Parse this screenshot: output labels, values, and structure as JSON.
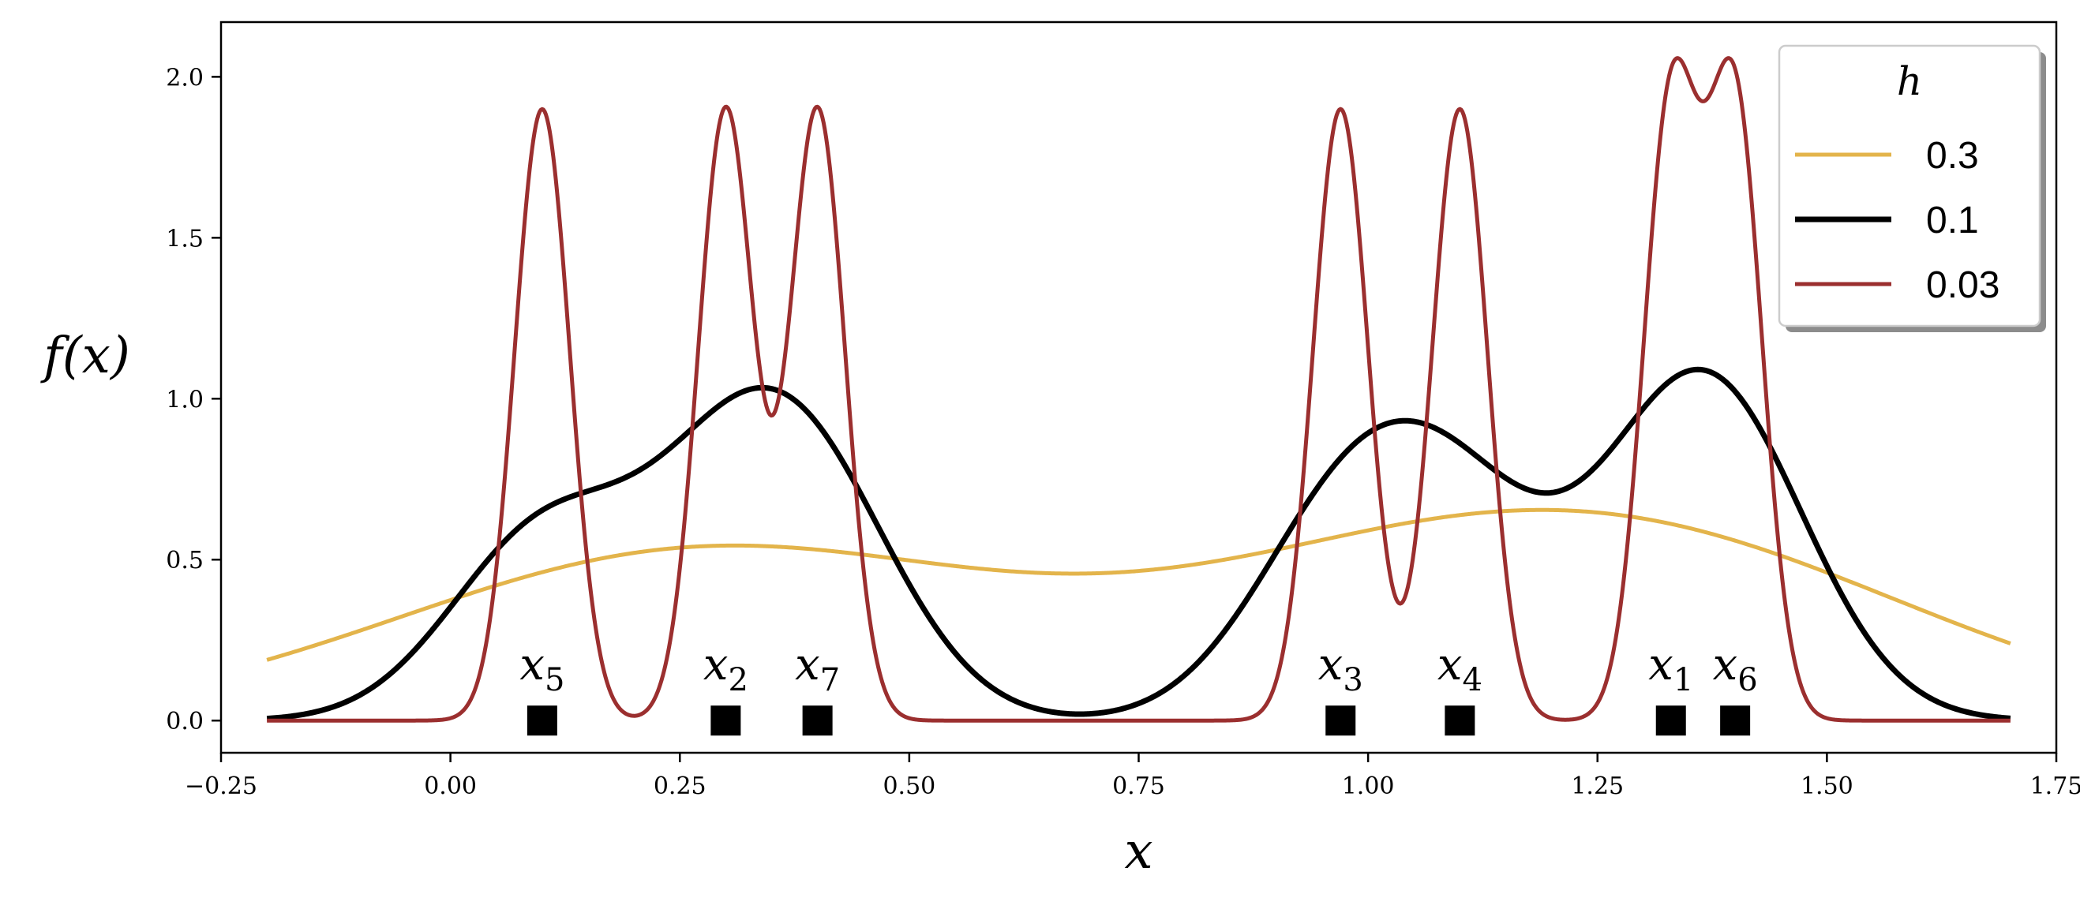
{
  "chart_data": {
    "type": "line",
    "title": "",
    "xlabel": "x",
    "ylabel": "f(x)",
    "xlim": [
      -0.25,
      1.75
    ],
    "ylim": [
      -0.1,
      2.17
    ],
    "xticks": [
      -0.25,
      0.0,
      0.25,
      0.5,
      0.75,
      1.0,
      1.25,
      1.5,
      1.75
    ],
    "xtick_labels": [
      "−0.25",
      "0.00",
      "0.25",
      "0.50",
      "0.75",
      "1.00",
      "1.25",
      "1.50",
      "1.75"
    ],
    "yticks": [
      0.0,
      0.5,
      1.0,
      1.5,
      2.0
    ],
    "ytick_labels": [
      "0.0",
      "0.5",
      "1.0",
      "1.5",
      "2.0"
    ],
    "grid": false,
    "legend": {
      "title": "h",
      "placement": "top-right",
      "shadow": true
    },
    "data_points": [
      {
        "name": "x",
        "sub": "1",
        "x": 1.33
      },
      {
        "name": "x",
        "sub": "2",
        "x": 0.3
      },
      {
        "name": "x",
        "sub": "3",
        "x": 0.97
      },
      {
        "name": "x",
        "sub": "4",
        "x": 1.1
      },
      {
        "name": "x",
        "sub": "5",
        "x": 0.1
      },
      {
        "name": "x",
        "sub": "6",
        "x": 1.4
      },
      {
        "name": "x",
        "sub": "7",
        "x": 0.4
      }
    ],
    "series": [
      {
        "name": "0.3",
        "bandwidth": 0.3,
        "color": "#e3b44b"
      },
      {
        "name": "0.1",
        "bandwidth": 0.1,
        "color": "#000000"
      },
      {
        "name": "0.03",
        "bandwidth": 0.03,
        "color": "#9b2f2f"
      }
    ],
    "x_range": [
      -0.2,
      1.7
    ]
  }
}
